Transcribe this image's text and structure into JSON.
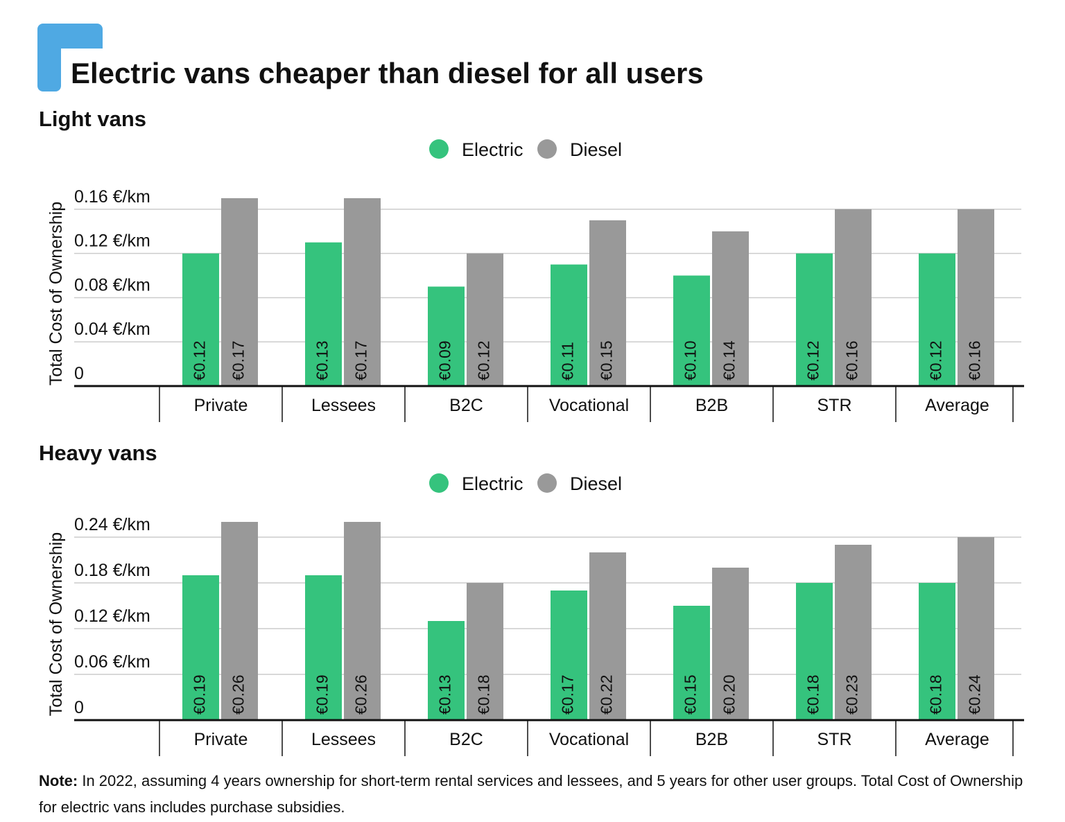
{
  "title": "Electric vans cheaper than diesel for all users",
  "note_label": "Note:",
  "note": "In 2022, assuming 4 years ownership for short-term rental services and lessees, and 5 years for other user groups. Total Cost of Ownership for electric vans includes purchase subsidies.",
  "chart_data": [
    {
      "type": "bar",
      "title": "Light vans",
      "y_label": "Total Cost of Ownership",
      "categories": [
        "Private",
        "Lessees",
        "B2C",
        "Vocational",
        "B2B",
        "STR",
        "Average"
      ],
      "series": [
        {
          "name": "Electric",
          "color": "#35c37d",
          "values": [
            0.12,
            0.13,
            0.09,
            0.11,
            0.1,
            0.12,
            0.12
          ],
          "value_labels": [
            "€0.12",
            "€0.13",
            "€0.09",
            "€0.11",
            "€0.10",
            "€0.12",
            "€0.12"
          ]
        },
        {
          "name": "Diesel",
          "color": "#999999",
          "values": [
            0.17,
            0.17,
            0.12,
            0.15,
            0.14,
            0.16,
            0.16
          ],
          "value_labels": [
            "€0.17",
            "€0.17",
            "€0.12",
            "€0.15",
            "€0.14",
            "€0.16",
            "€0.16"
          ]
        }
      ],
      "ylim": [
        0,
        0.18
      ],
      "yticks": [
        0,
        {
          "value": 0.04,
          "label": "0.04 €/km"
        },
        {
          "value": 0.08,
          "label": "0.08 €/km"
        },
        {
          "value": 0.12,
          "label": "0.12 €/km"
        },
        {
          "value": 0.16,
          "label": "0.16 €/km"
        }
      ],
      "grid": true
    },
    {
      "type": "bar",
      "title": "Heavy vans",
      "y_label": "Total Cost of Ownership",
      "categories": [
        "Private",
        "Lessees",
        "B2C",
        "Vocational",
        "B2B",
        "STR",
        "Average"
      ],
      "series": [
        {
          "name": "Electric",
          "color": "#35c37d",
          "values": [
            0.19,
            0.19,
            0.13,
            0.17,
            0.15,
            0.18,
            0.18
          ],
          "value_labels": [
            "€0.19",
            "€0.19",
            "€0.13",
            "€0.17",
            "€0.15",
            "€0.18",
            "€0.18"
          ]
        },
        {
          "name": "Diesel",
          "color": "#999999",
          "values": [
            0.26,
            0.26,
            0.18,
            0.22,
            0.2,
            0.23,
            0.24
          ],
          "value_labels": [
            "€0.26",
            "€0.26",
            "€0.18",
            "€0.22",
            "€0.20",
            "€0.23",
            "€0.24"
          ]
        }
      ],
      "ylim": [
        0,
        0.27
      ],
      "yticks": [
        0,
        {
          "value": 0.06,
          "label": "0.06 €/km"
        },
        {
          "value": 0.12,
          "label": "0.12 €/km"
        },
        {
          "value": 0.18,
          "label": "0.18 €/km"
        },
        {
          "value": 0.24,
          "label": "0.24 €/km"
        }
      ],
      "grid": true
    }
  ]
}
